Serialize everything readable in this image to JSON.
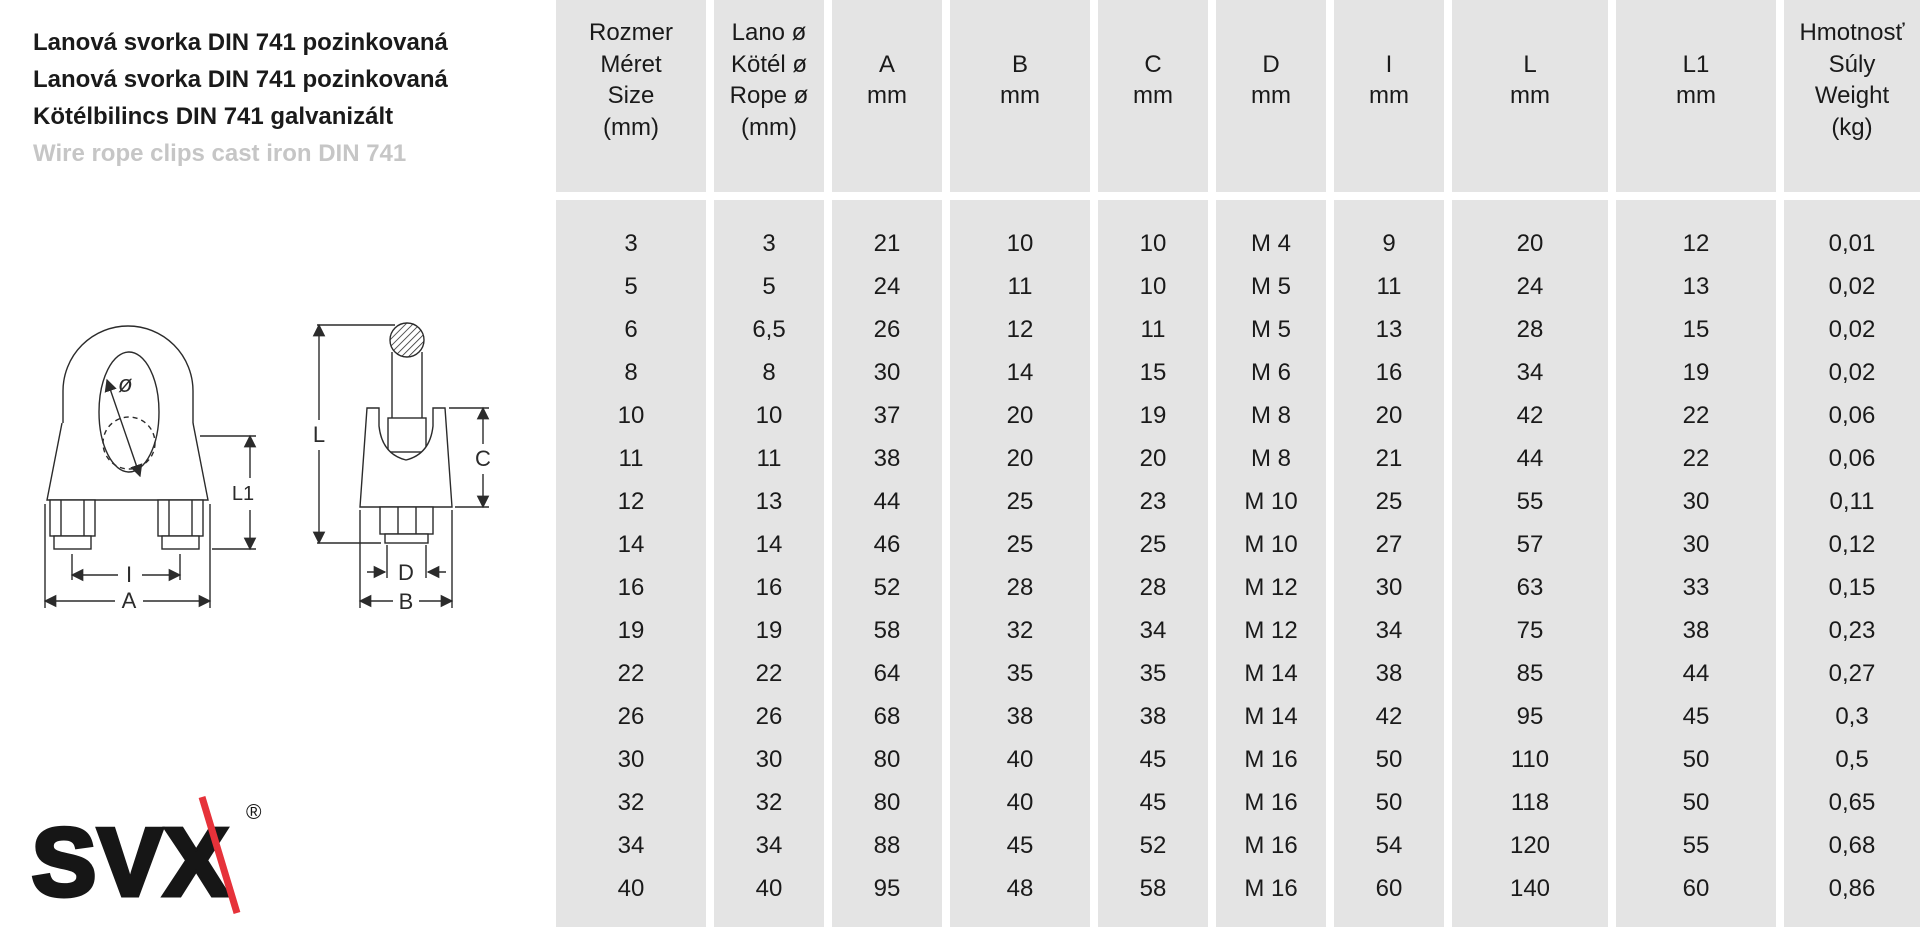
{
  "titles": {
    "line1": "Lanová svorka DIN 741 pozinkovaná",
    "line2": "Lanová svorka DIN 741 pozinkovaná",
    "line3": "Kötélbilincs DIN 741 galvanizált",
    "line4": "Wire rope clips cast iron DIN 741"
  },
  "logo": {
    "text": "SVX",
    "registered": "®"
  },
  "drawings": {
    "front_view": {
      "labels": {
        "diameter": "ø",
        "l1": "L1",
        "i": "I",
        "a": "A"
      }
    },
    "side_view": {
      "labels": {
        "l": "L",
        "c": "C",
        "d": "D",
        "b": "B"
      }
    }
  },
  "colors": {
    "table_cell_bg": "#e4e4e4",
    "text": "#1a1a1a",
    "muted_title": "#c6c6c6",
    "logo_red": "#e6323a"
  },
  "table": {
    "columns": [
      {
        "key": "size",
        "header_lines": [
          "Rozmer",
          "Méret",
          "Size",
          "(mm)"
        ]
      },
      {
        "key": "rope",
        "header_lines": [
          "Lano ø",
          "Kötél ø",
          "Rope ø",
          "(mm)"
        ]
      },
      {
        "key": "a",
        "header_lines": [
          "A",
          "mm"
        ]
      },
      {
        "key": "b",
        "header_lines": [
          "B",
          "mm"
        ]
      },
      {
        "key": "c",
        "header_lines": [
          "C",
          "mm"
        ]
      },
      {
        "key": "d",
        "header_lines": [
          "D",
          "mm"
        ]
      },
      {
        "key": "i",
        "header_lines": [
          "I",
          "mm"
        ]
      },
      {
        "key": "l",
        "header_lines": [
          "L",
          "mm"
        ]
      },
      {
        "key": "l1",
        "header_lines": [
          "L1",
          "mm"
        ]
      },
      {
        "key": "weight",
        "header_lines": [
          "Hmotnosť",
          "Súly",
          "Weight",
          "(kg)"
        ]
      }
    ],
    "rows": [
      [
        "3",
        "3",
        "21",
        "10",
        "10",
        "M 4",
        "9",
        "20",
        "12",
        "0,01"
      ],
      [
        "5",
        "5",
        "24",
        "11",
        "10",
        "M 5",
        "11",
        "24",
        "13",
        "0,02"
      ],
      [
        "6",
        "6,5",
        "26",
        "12",
        "11",
        "M 5",
        "13",
        "28",
        "15",
        "0,02"
      ],
      [
        "8",
        "8",
        "30",
        "14",
        "15",
        "M 6",
        "16",
        "34",
        "19",
        "0,02"
      ],
      [
        "10",
        "10",
        "37",
        "20",
        "19",
        "M 8",
        "20",
        "42",
        "22",
        "0,06"
      ],
      [
        "11",
        "11",
        "38",
        "20",
        "20",
        "M 8",
        "21",
        "44",
        "22",
        "0,06"
      ],
      [
        "12",
        "13",
        "44",
        "25",
        "23",
        "M 10",
        "25",
        "55",
        "30",
        "0,11"
      ],
      [
        "14",
        "14",
        "46",
        "25",
        "25",
        "M 10",
        "27",
        "57",
        "30",
        "0,12"
      ],
      [
        "16",
        "16",
        "52",
        "28",
        "28",
        "M 12",
        "30",
        "63",
        "33",
        "0,15"
      ],
      [
        "19",
        "19",
        "58",
        "32",
        "34",
        "M 12",
        "34",
        "75",
        "38",
        "0,23"
      ],
      [
        "22",
        "22",
        "64",
        "35",
        "35",
        "M 14",
        "38",
        "85",
        "44",
        "0,27"
      ],
      [
        "26",
        "26",
        "68",
        "38",
        "38",
        "M 14",
        "42",
        "95",
        "45",
        "0,3"
      ],
      [
        "30",
        "30",
        "80",
        "40",
        "45",
        "M 16",
        "50",
        "110",
        "50",
        "0,5"
      ],
      [
        "32",
        "32",
        "80",
        "40",
        "45",
        "M 16",
        "50",
        "118",
        "50",
        "0,65"
      ],
      [
        "34",
        "34",
        "88",
        "45",
        "52",
        "M 16",
        "54",
        "120",
        "55",
        "0,68"
      ],
      [
        "40",
        "40",
        "95",
        "48",
        "58",
        "M 16",
        "60",
        "140",
        "60",
        "0,86"
      ]
    ]
  }
}
